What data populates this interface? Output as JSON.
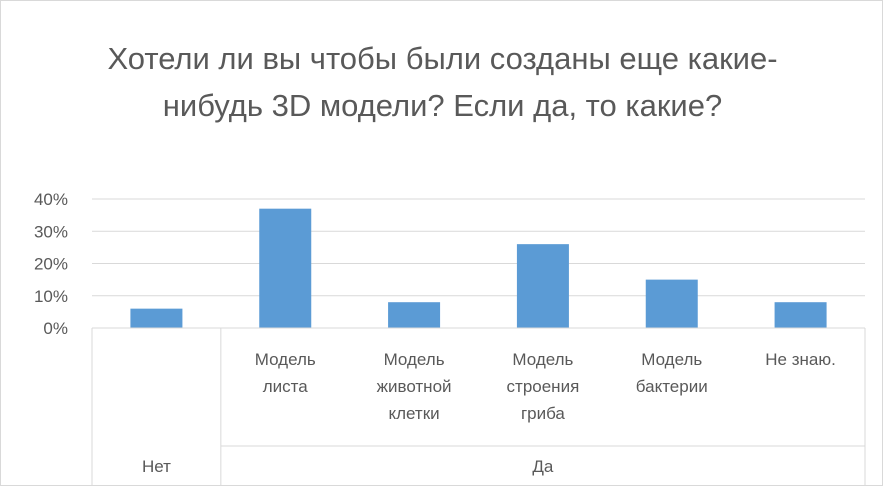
{
  "chart_data": {
    "type": "bar",
    "title": "Хотели ли вы чтобы были созданы еще какие-нибудь 3D модели? Если да, то какие?",
    "xlabel": "",
    "ylabel": "",
    "ylim": [
      0,
      0.4
    ],
    "yticks": [
      "0%",
      "10%",
      "20%",
      "30%",
      "40%"
    ],
    "grid": true,
    "bar_color": "#5b9bd5",
    "groups": [
      {
        "label": "Нет",
        "categories": [
          ""
        ]
      },
      {
        "label": "Да",
        "categories": [
          "Модель листа",
          "Модель животной клетки",
          "Модель строения гриба",
          "Модель бактерии",
          "Не знаю."
        ]
      }
    ],
    "categories": [
      {
        "label": "",
        "lines": []
      },
      {
        "label": "Модель листа",
        "lines": [
          "Модель",
          "листа"
        ]
      },
      {
        "label": "Модель животной клетки",
        "lines": [
          "Модель",
          "животной",
          "клетки"
        ]
      },
      {
        "label": "Модель строения гриба",
        "lines": [
          "Модель",
          "строения",
          "гриба"
        ]
      },
      {
        "label": "Модель бактерии",
        "lines": [
          "Модель",
          "бактерии"
        ]
      },
      {
        "label": "Не знаю.",
        "lines": [
          "Не знаю."
        ]
      }
    ],
    "values": [
      0.06,
      0.37,
      0.08,
      0.26,
      0.15,
      0.08
    ]
  }
}
